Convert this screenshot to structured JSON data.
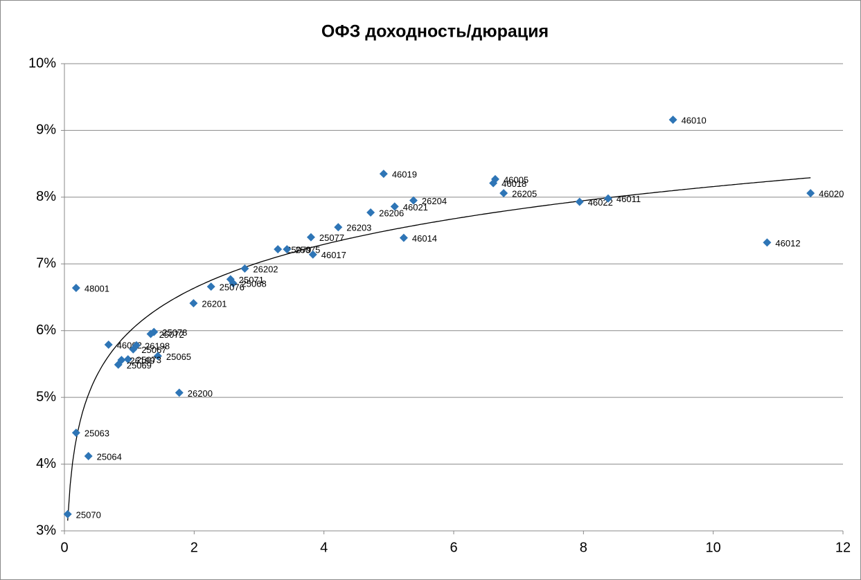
{
  "chart_data": {
    "type": "scatter",
    "title": "ОФЗ доходность/дюрация",
    "series": [
      {
        "color": "#2e75b6",
        "labels": [
          "46010",
          "46019",
          "46005",
          "46018",
          "26205",
          "46020",
          "26204",
          "46021",
          "46022",
          "46011",
          "26206",
          "26203",
          "46014",
          "25077",
          "46012",
          "25079",
          "25075",
          "46017",
          "26202",
          "25071",
          "25068",
          "25076",
          "26201",
          "48001",
          "46002",
          "25072",
          "25078",
          "26198",
          "25067",
          "25065",
          "25073",
          "26199",
          "25069",
          "26200",
          "25063",
          "25064",
          "25070"
        ],
        "x": [
          9.38,
          4.92,
          6.64,
          6.61,
          6.77,
          11.5,
          5.38,
          5.09,
          7.94,
          8.38,
          4.72,
          4.22,
          5.23,
          3.8,
          10.83,
          3.29,
          3.43,
          3.83,
          2.78,
          2.56,
          2.6,
          2.26,
          1.99,
          0.18,
          0.68,
          1.33,
          1.38,
          1.11,
          1.06,
          1.44,
          0.98,
          0.88,
          0.83,
          1.77,
          0.18,
          0.37,
          0.05
        ],
        "values": [
          9.16,
          8.35,
          8.27,
          8.21,
          8.06,
          8.06,
          7.95,
          7.86,
          7.93,
          7.98,
          7.77,
          7.55,
          7.39,
          7.4,
          7.32,
          7.22,
          7.22,
          7.14,
          6.93,
          6.77,
          6.71,
          6.66,
          6.41,
          6.64,
          5.79,
          5.95,
          5.98,
          5.78,
          5.72,
          5.62,
          5.57,
          5.56,
          5.49,
          5.07,
          4.47,
          4.12,
          3.25
        ]
      }
    ],
    "trendline": "logarithmic",
    "xlim": [
      0,
      12
    ],
    "xticks": [
      0,
      2,
      4,
      6,
      8,
      10,
      12
    ],
    "ylim": [
      3,
      10
    ],
    "yticks": [
      {
        "value": 3,
        "label": "3%"
      },
      {
        "value": 4,
        "label": "4%"
      },
      {
        "value": 5,
        "label": "5%"
      },
      {
        "value": 6,
        "label": "6%"
      },
      {
        "value": 7,
        "label": "7%"
      },
      {
        "value": 8,
        "label": "8%"
      },
      {
        "value": 9,
        "label": "9%"
      },
      {
        "value": 10,
        "label": "10%"
      }
    ],
    "grid": true
  }
}
